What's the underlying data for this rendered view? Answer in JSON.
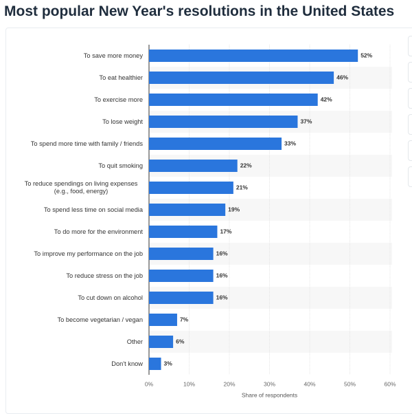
{
  "chart_data": {
    "type": "bar",
    "orientation": "horizontal",
    "title": "Most popular New Year's resolutions in the United States",
    "categories": [
      "To save more money",
      "To eat healthier",
      "To exercise more",
      "To lose weight",
      "To spend more time with family / friends",
      "To quit smoking",
      "To reduce spendings on living expenses (e.g., food, energy)",
      "To spend less time on social media",
      "To do more for the environment",
      "To improve my performance on the job",
      "To reduce stress on the job",
      "To cut down on alcohol",
      "To become vegetarian / vegan",
      "Other",
      "Don't know"
    ],
    "values": [
      52,
      46,
      42,
      37,
      33,
      22,
      21,
      19,
      17,
      16,
      16,
      16,
      7,
      6,
      3
    ],
    "value_labels": [
      "52%",
      "46%",
      "42%",
      "37%",
      "33%",
      "22%",
      "21%",
      "19%",
      "17%",
      "16%",
      "16%",
      "16%",
      "7%",
      "6%",
      "3%"
    ],
    "color": "#2a76dd",
    "xlabel": "Share of respondents",
    "xlim": [
      0,
      60
    ],
    "xticks": [
      {
        "value": 0,
        "label": "0%"
      },
      {
        "value": 10,
        "label": "10%"
      },
      {
        "value": 20,
        "label": "20%"
      },
      {
        "value": 30,
        "label": "30%"
      },
      {
        "value": 40,
        "label": "40%"
      },
      {
        "value": 50,
        "label": "50%"
      },
      {
        "value": 60,
        "label": "60%"
      }
    ],
    "grid": true
  }
}
